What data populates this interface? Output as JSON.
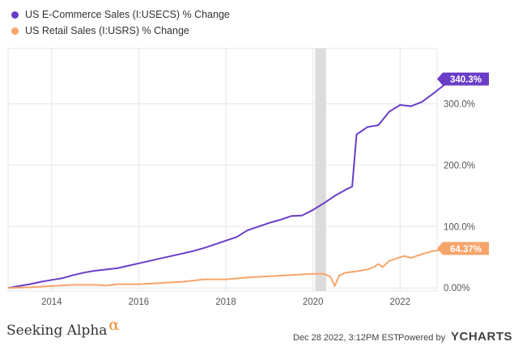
{
  "legend": [
    {
      "label": "US E-Commerce Sales (I:USECS) % Change",
      "color": "#6a3dc8"
    },
    {
      "label": "US Retail Sales (I:USRS) % Change",
      "color": "#f7a46a"
    }
  ],
  "chart_data": {
    "type": "line",
    "xlim": [
      2013.0,
      2022.85
    ],
    "ylim": [
      -5,
      390
    ],
    "x_ticks": [
      2014,
      2016,
      2018,
      2020,
      2022
    ],
    "x_tick_labels": [
      "2014",
      "2016",
      "2018",
      "2020",
      "2022"
    ],
    "y_ticks": [
      0,
      100,
      200,
      300
    ],
    "y_tick_labels": [
      "0.00%",
      "100.0%",
      "200.0%",
      "300.0%"
    ],
    "grid": true,
    "shaded_band": [
      2020.05,
      2020.3
    ],
    "series": [
      {
        "name": "US E-Commerce Sales (I:USECS) % Change",
        "color": "#6a3dc8",
        "end_label": "340.3%",
        "points": [
          [
            2013.0,
            0
          ],
          [
            2013.25,
            3
          ],
          [
            2013.5,
            6
          ],
          [
            2013.75,
            10
          ],
          [
            2014.0,
            13
          ],
          [
            2014.25,
            16
          ],
          [
            2014.5,
            21
          ],
          [
            2014.75,
            25
          ],
          [
            2015.0,
            28
          ],
          [
            2015.25,
            30
          ],
          [
            2015.5,
            32
          ],
          [
            2015.75,
            36
          ],
          [
            2016.0,
            40
          ],
          [
            2016.25,
            44
          ],
          [
            2016.5,
            48
          ],
          [
            2016.75,
            52
          ],
          [
            2017.0,
            56
          ],
          [
            2017.25,
            60
          ],
          [
            2017.5,
            65
          ],
          [
            2017.75,
            71
          ],
          [
            2018.0,
            77
          ],
          [
            2018.25,
            83
          ],
          [
            2018.5,
            94
          ],
          [
            2018.75,
            100
          ],
          [
            2019.0,
            106
          ],
          [
            2019.25,
            111
          ],
          [
            2019.5,
            117
          ],
          [
            2019.75,
            118
          ],
          [
            2020.0,
            127
          ],
          [
            2020.25,
            138
          ],
          [
            2020.5,
            150
          ],
          [
            2020.75,
            160
          ],
          [
            2020.9,
            165
          ],
          [
            2021.0,
            250
          ],
          [
            2021.25,
            262
          ],
          [
            2021.5,
            265
          ],
          [
            2021.75,
            287
          ],
          [
            2022.0,
            298
          ],
          [
            2022.25,
            296
          ],
          [
            2022.5,
            303
          ],
          [
            2022.75,
            316
          ],
          [
            2023.0,
            330
          ],
          [
            2023.25,
            340.3
          ]
        ]
      },
      {
        "name": "US Retail Sales (I:USRS) % Change",
        "color": "#f7a46a",
        "end_label": "64.37%",
        "points": [
          [
            2013.0,
            0
          ],
          [
            2013.5,
            1
          ],
          [
            2014.0,
            3
          ],
          [
            2014.5,
            5
          ],
          [
            2015.0,
            5
          ],
          [
            2015.25,
            4
          ],
          [
            2015.5,
            6
          ],
          [
            2016.0,
            6
          ],
          [
            2016.5,
            8
          ],
          [
            2017.0,
            10
          ],
          [
            2017.25,
            12
          ],
          [
            2017.5,
            14
          ],
          [
            2018.0,
            14
          ],
          [
            2018.5,
            17
          ],
          [
            2019.0,
            19
          ],
          [
            2019.5,
            21
          ],
          [
            2020.0,
            23
          ],
          [
            2020.25,
            23
          ],
          [
            2020.4,
            18
          ],
          [
            2020.5,
            3
          ],
          [
            2020.6,
            20
          ],
          [
            2020.75,
            25
          ],
          [
            2021.0,
            27
          ],
          [
            2021.25,
            30
          ],
          [
            2021.4,
            34
          ],
          [
            2021.5,
            39
          ],
          [
            2021.6,
            34
          ],
          [
            2021.75,
            44
          ],
          [
            2022.0,
            50
          ],
          [
            2022.1,
            52
          ],
          [
            2022.25,
            49
          ],
          [
            2022.5,
            55
          ],
          [
            2022.75,
            60
          ],
          [
            2023.0,
            62
          ],
          [
            2023.25,
            64.37
          ]
        ]
      }
    ]
  },
  "footer": {
    "brand": "Seeking Alpha",
    "brand_symbol": "α",
    "timestamp": "Dec 28 2022, 3:12PM EST.",
    "powered_by": "Powered by",
    "ycharts": "YCHARTS"
  }
}
